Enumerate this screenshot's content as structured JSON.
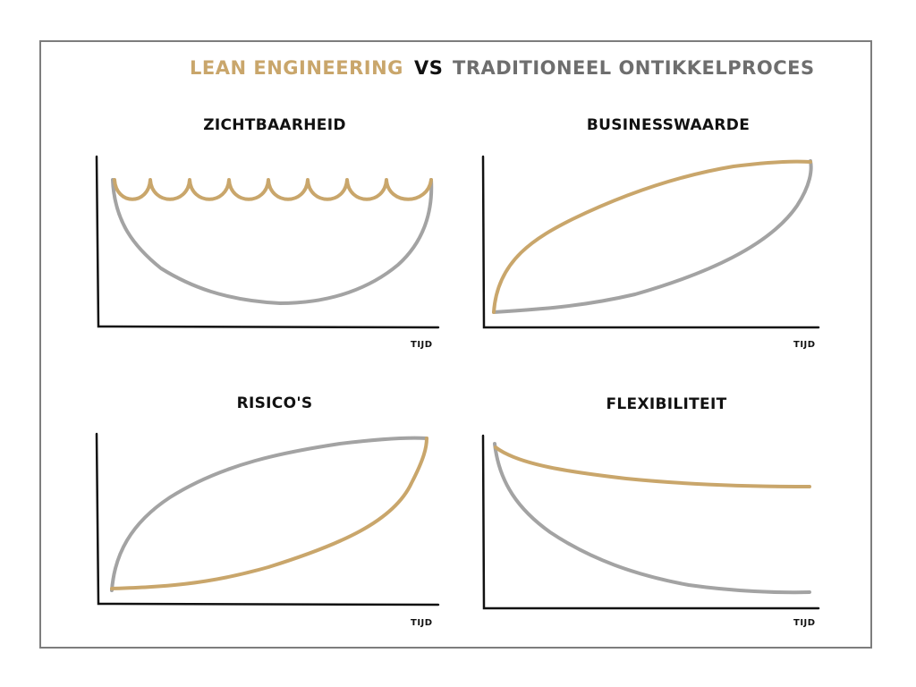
{
  "title": {
    "lean": "LEAN ENGINEERING",
    "vs": "VS",
    "traditional": "TRADITIONEEL ONTIKKELPROCES"
  },
  "colors": {
    "lean": "#C9A66B",
    "traditional": "#A3A3A3",
    "vs": "#111111",
    "traditional_title": "#6E6E6E"
  },
  "charts": [
    {
      "title": "ZICHTBAARHEID",
      "x_label": "TIJD"
    },
    {
      "title": "BUSINESSWAARDE",
      "x_label": "TIJD"
    },
    {
      "title": "RISICO'S",
      "x_label": "TIJD"
    },
    {
      "title": "FLEXIBILITEIT",
      "x_label": "TIJD"
    }
  ]
}
